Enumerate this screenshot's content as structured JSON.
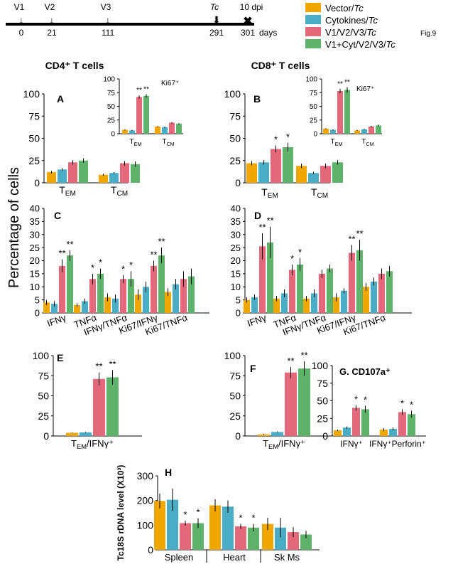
{
  "figure_label": "Fig.9",
  "y_axis_title": "Percentage of cells",
  "timeline": {
    "ticks": [
      {
        "day": "0",
        "label": "V1"
      },
      {
        "day": "21",
        "label": "V2"
      },
      {
        "day": "111",
        "label": "V3"
      },
      {
        "day": "291",
        "label": "Tc"
      },
      {
        "day": "301",
        "label": "10 dpi"
      }
    ],
    "unit": "days"
  },
  "legend": [
    {
      "label": "Vector/Tc",
      "color": "#f0a800"
    },
    {
      "label": "Cytokines/Tc",
      "color": "#4bacc6"
    },
    {
      "label": "V1/V2/V3/Tc",
      "color": "#e2687a"
    },
    {
      "label": "V1+Cyt/V2/V3/Tc",
      "color": "#5fb26a"
    }
  ],
  "section_titles": {
    "cd4": "CD4⁺ T cells",
    "cd8": "CD8⁺ T cells"
  },
  "chart_data": [
    {
      "id": "A",
      "type": "bar",
      "panel_label": "A",
      "ylim": [
        0,
        100
      ],
      "yticks": [
        "0",
        "25",
        "50",
        "75",
        "100"
      ],
      "categories": [
        "T_EM",
        "T_CM"
      ],
      "series": [
        {
          "values": [
            12,
            9
          ],
          "err": [
            1.5,
            1
          ]
        },
        {
          "values": [
            15,
            11
          ],
          "err": [
            1.5,
            1
          ]
        },
        {
          "values": [
            23,
            22
          ],
          "err": [
            2.5,
            2.5
          ]
        },
        {
          "values": [
            25,
            21
          ],
          "err": [
            2.5,
            3
          ]
        }
      ],
      "stars": [
        [],
        [],
        [],
        []
      ]
    },
    {
      "id": "A_inset",
      "type": "bar",
      "panel_label": "Ki67⁺",
      "ylim": [
        0,
        100
      ],
      "yticks": [
        "0",
        "25",
        "50",
        "75",
        "100"
      ],
      "categories": [
        "T_EM",
        "T_CM"
      ],
      "series": [
        {
          "values": [
            7,
            13
          ],
          "err": [
            1,
            1
          ]
        },
        {
          "values": [
            6,
            12
          ],
          "err": [
            1,
            1
          ]
        },
        {
          "values": [
            67,
            20
          ],
          "err": [
            3,
            1.5
          ]
        },
        {
          "values": [
            69,
            18
          ],
          "err": [
            3,
            1.5
          ]
        }
      ],
      "stars": [
        [],
        [],
        [
          "**",
          ""
        ],
        [
          "**",
          ""
        ]
      ]
    },
    {
      "id": "B",
      "type": "bar",
      "panel_label": "B",
      "ylim": [
        0,
        100
      ],
      "yticks": [
        "0",
        "25",
        "50",
        "75",
        "100"
      ],
      "categories": [
        "T_EM",
        "T_CM"
      ],
      "series": [
        {
          "values": [
            22,
            19
          ],
          "err": [
            2.5,
            2.5
          ]
        },
        {
          "values": [
            23,
            11
          ],
          "err": [
            2.5,
            1.5
          ]
        },
        {
          "values": [
            38,
            19
          ],
          "err": [
            4,
            2.5
          ]
        },
        {
          "values": [
            40,
            23
          ],
          "err": [
            5,
            2.5
          ]
        }
      ],
      "stars": [
        [],
        [],
        [
          "*",
          ""
        ],
        [
          "*",
          ""
        ]
      ]
    },
    {
      "id": "B_inset",
      "type": "bar",
      "panel_label": "Ki67⁺",
      "ylim": [
        0,
        100
      ],
      "yticks": [
        "0",
        "25",
        "50",
        "75",
        "100"
      ],
      "categories": [
        "T_EM",
        "T_CM"
      ],
      "series": [
        {
          "values": [
            9,
            6
          ],
          "err": [
            1,
            1
          ]
        },
        {
          "values": [
            7,
            8
          ],
          "err": [
            1,
            1
          ]
        },
        {
          "values": [
            78,
            13
          ],
          "err": [
            4,
            1.5
          ]
        },
        {
          "values": [
            80,
            15
          ],
          "err": [
            5,
            1.5
          ]
        }
      ],
      "stars": [
        [],
        [],
        [
          "**",
          ""
        ],
        [
          "**",
          ""
        ]
      ]
    },
    {
      "id": "C",
      "type": "bar",
      "panel_label": "C",
      "ylim": [
        0,
        40
      ],
      "yticks": [
        "0",
        "5",
        "10",
        "15",
        "20",
        "25",
        "30",
        "35",
        "40"
      ],
      "categories": [
        "IFNγ",
        "TNFα",
        "IFNγ/TNFα",
        "Ki67/IFNγ",
        "Ki67/TNFα"
      ],
      "series": [
        {
          "values": [
            4,
            3,
            6,
            7,
            8
          ],
          "err": [
            1,
            0.7,
            1.5,
            2,
            1.5
          ]
        },
        {
          "values": [
            3.5,
            4.5,
            5.5,
            10,
            11
          ],
          "err": [
            1,
            1,
            1.5,
            2,
            2
          ]
        },
        {
          "values": [
            18,
            13,
            13,
            18,
            13
          ],
          "err": [
            2.5,
            2,
            1.5,
            2,
            3
          ]
        },
        {
          "values": [
            22,
            15,
            13,
            22,
            14
          ],
          "err": [
            2,
            2,
            3,
            3,
            3
          ]
        }
      ],
      "stars": [
        [],
        [],
        [
          "**",
          "*",
          "*",
          "**",
          ""
        ],
        [
          "**",
          "*",
          "*",
          "**",
          ""
        ]
      ]
    },
    {
      "id": "D",
      "type": "bar",
      "panel_label": "D",
      "ylim": [
        0,
        40
      ],
      "yticks": [
        "0",
        "5",
        "10",
        "15",
        "20",
        "25",
        "30",
        "35",
        "40"
      ],
      "categories": [
        "IFNγ",
        "TNFα",
        "IFNγ/TNFα",
        "Ki67/IFNγ",
        "Ki67/TNFα"
      ],
      "series": [
        {
          "values": [
            5,
            5.5,
            5.5,
            6,
            10
          ],
          "err": [
            1,
            1,
            1,
            1.5,
            1.5
          ]
        },
        {
          "values": [
            6,
            7.5,
            7.5,
            8.5,
            12
          ],
          "err": [
            1,
            1.5,
            1.5,
            1,
            1.5
          ]
        },
        {
          "values": [
            25.5,
            16.5,
            15,
            23,
            15
          ],
          "err": [
            5,
            2,
            1.5,
            3,
            2
          ]
        },
        {
          "values": [
            27,
            18.5,
            17,
            24,
            16
          ],
          "err": [
            6,
            2.5,
            1.5,
            4,
            2
          ]
        }
      ],
      "stars": [
        [],
        [],
        [
          "**",
          "*",
          "",
          "**",
          ""
        ],
        [
          "**",
          "*",
          "",
          "**",
          ""
        ]
      ]
    },
    {
      "id": "E",
      "type": "bar",
      "panel_label": "E",
      "ylim": [
        0,
        100
      ],
      "yticks": [
        "0",
        "25",
        "50",
        "75",
        "100"
      ],
      "categories": [
        "T_EM/IFNγ⁺"
      ],
      "series": [
        {
          "values": [
            4
          ],
          "err": [
            0.5
          ]
        },
        {
          "values": [
            4.5
          ],
          "err": [
            0.5
          ]
        },
        {
          "values": [
            71
          ],
          "err": [
            8
          ]
        },
        {
          "values": [
            73
          ],
          "err": [
            9
          ]
        }
      ],
      "stars": [
        [],
        [],
        [
          "**"
        ],
        [
          "**"
        ]
      ]
    },
    {
      "id": "F",
      "type": "bar",
      "panel_label": "F",
      "ylim": [
        0,
        100
      ],
      "yticks": [
        "0",
        "25",
        "50",
        "75",
        "100"
      ],
      "categories": [
        "T_EM/IFNγ⁺"
      ],
      "series": [
        {
          "values": [
            2
          ],
          "err": [
            0.5
          ]
        },
        {
          "values": [
            5
          ],
          "err": [
            0.5
          ]
        },
        {
          "values": [
            79
          ],
          "err": [
            7
          ]
        },
        {
          "values": [
            84
          ],
          "err": [
            9
          ]
        }
      ],
      "stars": [
        [],
        [],
        [
          "**"
        ],
        [
          "**"
        ]
      ]
    },
    {
      "id": "G",
      "type": "bar",
      "panel_label": "G. CD107a⁺",
      "ylim": [
        0,
        100
      ],
      "yticks": [
        "0",
        "25",
        "50",
        "75",
        "100"
      ],
      "categories": [
        "IFNγ⁺",
        "IFNγ⁺Perforin⁺"
      ],
      "series": [
        {
          "values": [
            8,
            9
          ],
          "err": [
            1,
            2
          ]
        },
        {
          "values": [
            12,
            10
          ],
          "err": [
            1.5,
            2
          ]
        },
        {
          "values": [
            40,
            34
          ],
          "err": [
            4,
            4
          ]
        },
        {
          "values": [
            38,
            31
          ],
          "err": [
            5,
            5
          ]
        }
      ],
      "stars": [
        [],
        [],
        [
          "*",
          "*"
        ],
        [
          "*",
          "*"
        ]
      ]
    },
    {
      "id": "H",
      "type": "bar",
      "panel_label": "H",
      "ylim": [
        0,
        300
      ],
      "yticks": [
        "0",
        "100",
        "200",
        "300"
      ],
      "ylabel": "Tc18S rDNA level (X10³)",
      "categories": [
        "Spleen",
        "Heart",
        "Sk Ms"
      ],
      "series": [
        {
          "values": [
            198,
            180,
            105
          ],
          "err": [
            30,
            25,
            25
          ]
        },
        {
          "values": [
            203,
            175,
            90
          ],
          "err": [
            45,
            25,
            40
          ]
        },
        {
          "values": [
            108,
            95,
            72
          ],
          "err": [
            10,
            10,
            20
          ]
        },
        {
          "values": [
            108,
            90,
            62
          ],
          "err": [
            20,
            15,
            15
          ]
        }
      ],
      "stars": [
        [],
        [],
        [
          "*",
          "*",
          ""
        ],
        [
          "*",
          "*",
          ""
        ]
      ]
    }
  ]
}
